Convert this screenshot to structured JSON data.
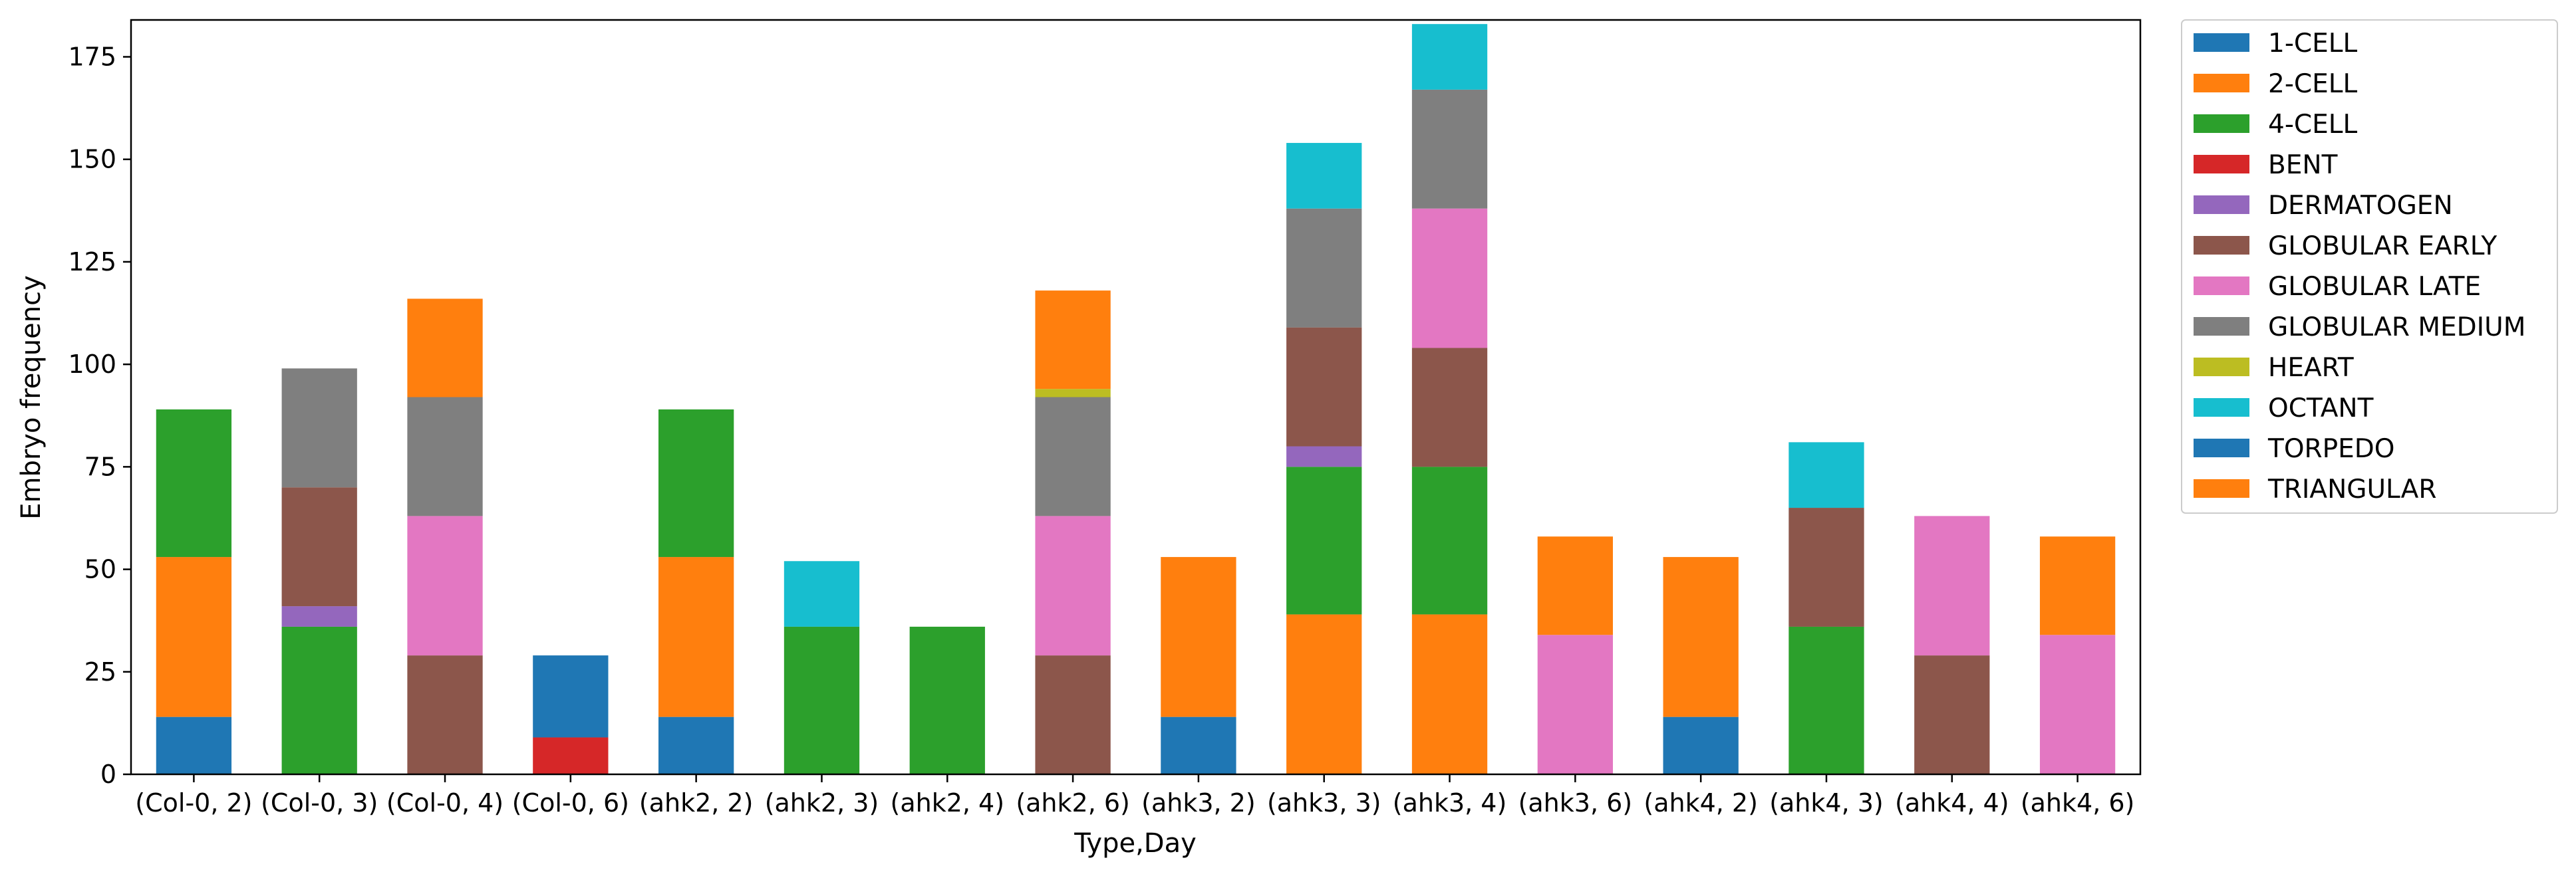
{
  "chart_data": {
    "type": "bar",
    "stacked": true,
    "xlabel": "Type,Day",
    "ylabel": "Embryo frequency",
    "ylim": [
      0,
      184
    ],
    "yticks": [
      0,
      25,
      50,
      75,
      100,
      125,
      150,
      175
    ],
    "grid": false,
    "legend_position": "outside-right-top",
    "categories": [
      "(Col-0, 2)",
      "(Col-0, 3)",
      "(Col-0, 4)",
      "(Col-0, 6)",
      "(ahk2, 2)",
      "(ahk2, 3)",
      "(ahk2, 4)",
      "(ahk2, 6)",
      "(ahk3, 2)",
      "(ahk3, 3)",
      "(ahk3, 4)",
      "(ahk3, 6)",
      "(ahk4, 2)",
      "(ahk4, 3)",
      "(ahk4, 4)",
      "(ahk4, 6)"
    ],
    "series": [
      {
        "name": "1-CELL",
        "color": "#1f77b4",
        "values": [
          14,
          0,
          0,
          0,
          14,
          0,
          0,
          0,
          14,
          0,
          0,
          0,
          14,
          0,
          0,
          0
        ]
      },
      {
        "name": "2-CELL",
        "color": "#ff7f0e",
        "values": [
          39,
          0,
          0,
          0,
          39,
          0,
          0,
          0,
          39,
          39,
          39,
          0,
          39,
          0,
          0,
          0
        ]
      },
      {
        "name": "4-CELL",
        "color": "#2ca02c",
        "values": [
          36,
          36,
          0,
          0,
          36,
          36,
          36,
          0,
          0,
          36,
          36,
          0,
          0,
          36,
          0,
          0
        ]
      },
      {
        "name": "BENT",
        "color": "#d62728",
        "values": [
          0,
          0,
          0,
          9,
          0,
          0,
          0,
          0,
          0,
          0,
          0,
          0,
          0,
          0,
          0,
          0
        ]
      },
      {
        "name": "DERMATOGEN",
        "color": "#9467bd",
        "values": [
          0,
          5,
          0,
          0,
          0,
          0,
          0,
          0,
          0,
          5,
          0,
          0,
          0,
          0,
          0,
          0
        ]
      },
      {
        "name": "GLOBULAR EARLY",
        "color": "#8c564b",
        "values": [
          0,
          29,
          29,
          0,
          0,
          0,
          0,
          29,
          0,
          29,
          29,
          0,
          0,
          29,
          29,
          0
        ]
      },
      {
        "name": "GLOBULAR LATE",
        "color": "#e377c2",
        "values": [
          0,
          0,
          34,
          0,
          0,
          0,
          0,
          34,
          0,
          0,
          34,
          34,
          0,
          0,
          34,
          34
        ]
      },
      {
        "name": "GLOBULAR MEDIUM",
        "color": "#7f7f7f",
        "values": [
          0,
          29,
          29,
          0,
          0,
          0,
          0,
          29,
          0,
          29,
          29,
          0,
          0,
          0,
          0,
          0
        ]
      },
      {
        "name": "HEART",
        "color": "#bcbd22",
        "values": [
          0,
          0,
          0,
          0,
          0,
          0,
          0,
          2,
          0,
          0,
          0,
          0,
          0,
          0,
          0,
          0
        ]
      },
      {
        "name": "OCTANT",
        "color": "#17becf",
        "values": [
          0,
          0,
          0,
          0,
          0,
          16,
          0,
          0,
          0,
          16,
          16,
          0,
          0,
          16,
          0,
          0
        ]
      },
      {
        "name": "TORPEDO",
        "color": "#1f77b4",
        "values": [
          0,
          0,
          0,
          20,
          0,
          0,
          0,
          0,
          0,
          0,
          0,
          0,
          0,
          0,
          0,
          0
        ]
      },
      {
        "name": "TRIANGULAR",
        "color": "#ff7f0e",
        "values": [
          0,
          0,
          24,
          0,
          0,
          0,
          0,
          24,
          0,
          0,
          0,
          24,
          0,
          0,
          0,
          24
        ]
      }
    ]
  }
}
